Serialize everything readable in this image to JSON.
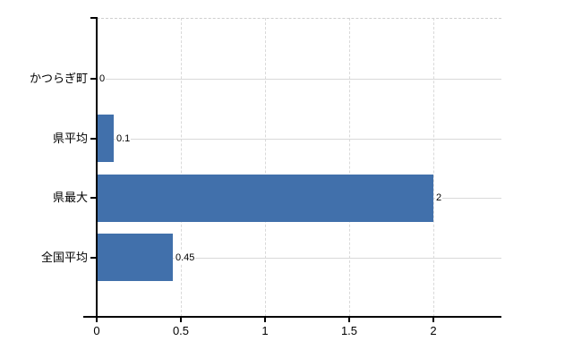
{
  "chart_data": {
    "type": "bar",
    "orientation": "horizontal",
    "title": "",
    "xlabel": "",
    "ylabel": "",
    "categories": [
      "かつらぎ町",
      "県平均",
      "県最大",
      "全国平均"
    ],
    "values": [
      0,
      0.1,
      2,
      0.45
    ],
    "value_labels": [
      "0",
      "0.1",
      "2",
      "0.45"
    ],
    "x_ticks": [
      0,
      0.5,
      1,
      1.5,
      2
    ],
    "x_tick_labels": [
      "0",
      "0.5",
      "1",
      "1.5",
      "2"
    ],
    "xlim": [
      0,
      2.4
    ],
    "grid": true,
    "legend_position": "none",
    "bar_color": "#4170ab",
    "grid_color": "#d9d9d9",
    "top_border_color": "#cfcfcf",
    "axis_color": "#000000",
    "text_color": "#000000"
  }
}
